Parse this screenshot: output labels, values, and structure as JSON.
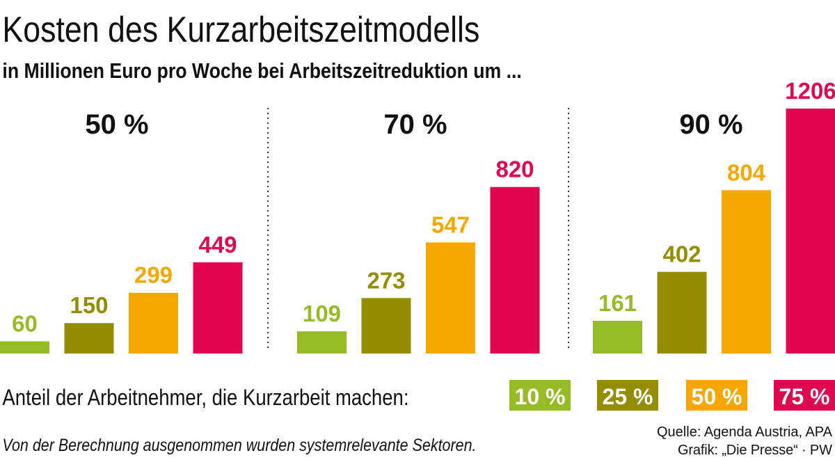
{
  "chart_data": {
    "type": "bar",
    "title": "Kosten des Kurzarbeitszeitmodells",
    "subtitle": "in Millionen Euro pro Woche bei Arbeitszeitreduktion um ...",
    "categories": [
      "50 %",
      "70 %",
      "90 %"
    ],
    "series": [
      {
        "name": "10 %",
        "color": "#95bc25",
        "values": [
          60,
          109,
          161
        ]
      },
      {
        "name": "25 %",
        "color": "#958d00",
        "values": [
          150,
          273,
          402
        ]
      },
      {
        "name": "50 %",
        "color": "#f7a800",
        "values": [
          299,
          547,
          804
        ]
      },
      {
        "name": "75 %",
        "color": "#e0064f",
        "values": [
          449,
          820,
          1206
        ]
      }
    ],
    "ylim": [
      0,
      1206
    ],
    "legend_label": "Anteil der Arbeitnehmer, die Kurzarbeit machen:",
    "legend_position": "bottom",
    "footnote": "Von der Berechnung ausgenommen wurden systemrelevante Sektoren.",
    "source": "Quelle: Agenda Austria, APA",
    "credit": "Grafik: „Die Presse“ · PW"
  }
}
